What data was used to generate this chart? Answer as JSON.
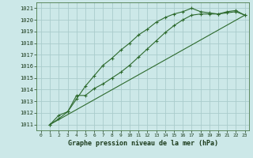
{
  "line1_x": [
    1,
    2,
    3,
    4,
    5,
    6,
    7,
    8,
    9,
    10,
    11,
    12,
    13,
    14,
    15,
    16,
    17,
    18,
    19,
    20,
    21,
    22,
    23
  ],
  "line1_y": [
    1011.0,
    1011.5,
    1012.1,
    1013.2,
    1014.3,
    1015.2,
    1016.1,
    1016.7,
    1017.4,
    1018.0,
    1018.7,
    1019.2,
    1019.8,
    1020.2,
    1020.5,
    1020.7,
    1021.0,
    1020.7,
    1020.6,
    1020.5,
    1020.7,
    1020.8,
    1020.4
  ],
  "line2_x": [
    1,
    2,
    3,
    4,
    5,
    6,
    7,
    8,
    9,
    10,
    11,
    12,
    13,
    14,
    15,
    16,
    17,
    18,
    19,
    20,
    21,
    22,
    23
  ],
  "line2_y": [
    1011.0,
    1011.8,
    1012.1,
    1013.5,
    1013.5,
    1014.1,
    1014.5,
    1015.0,
    1015.5,
    1016.1,
    1016.8,
    1017.5,
    1018.2,
    1018.9,
    1019.5,
    1020.0,
    1020.4,
    1020.5,
    1020.5,
    1020.5,
    1020.6,
    1020.7,
    1020.4
  ],
  "line3_x": [
    1,
    23
  ],
  "line3_y": [
    1011.0,
    1020.4
  ],
  "line_color": "#2d6a2d",
  "bg_color": "#cce8e8",
  "grid_color": "#aacccc",
  "xlabel": "Graphe pression niveau de la mer (hPa)",
  "xlim": [
    -0.5,
    23.5
  ],
  "ylim": [
    1010.5,
    1021.5
  ],
  "xticks": [
    0,
    1,
    2,
    3,
    4,
    5,
    6,
    7,
    8,
    9,
    10,
    11,
    12,
    13,
    14,
    15,
    16,
    17,
    18,
    19,
    20,
    21,
    22,
    23
  ],
  "yticks": [
    1011,
    1012,
    1013,
    1014,
    1015,
    1016,
    1017,
    1018,
    1019,
    1020,
    1021
  ]
}
